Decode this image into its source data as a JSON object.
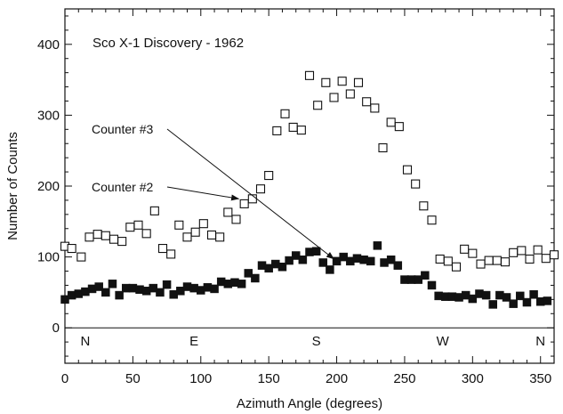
{
  "chart_data": {
    "type": "scatter",
    "title": "Sco X-1 Discovery - 1962",
    "xlabel": "Azimuth Angle (degrees)",
    "ylabel": "Number of Counts",
    "xlim": [
      0,
      360
    ],
    "ylim": [
      -50,
      450
    ],
    "xticks": [
      0,
      50,
      100,
      150,
      200,
      250,
      300,
      350
    ],
    "yticks": [
      0,
      100,
      200,
      300,
      400
    ],
    "grid": false,
    "annotations": [
      {
        "text": "Counter #3",
        "target": [
          198,
          97
        ]
      },
      {
        "text": "Counter #2",
        "target": [
          128,
          182
        ]
      }
    ],
    "direction_labels": [
      {
        "text": "N",
        "x": 15
      },
      {
        "text": "E",
        "x": 95
      },
      {
        "text": "S",
        "x": 185
      },
      {
        "text": "W",
        "x": 278
      },
      {
        "text": "N",
        "x": 350
      }
    ],
    "series": [
      {
        "marker": "open-square",
        "x": [
          0,
          5,
          12,
          18,
          24,
          30,
          36,
          42,
          48,
          54,
          60,
          66,
          72,
          78,
          84,
          90,
          96,
          102,
          108,
          114,
          120,
          126,
          132,
          138,
          144,
          150,
          156,
          162,
          168,
          174,
          180,
          186,
          192,
          198,
          204,
          210,
          216,
          222,
          228,
          234,
          240,
          246,
          252,
          258,
          264,
          270,
          276,
          282,
          288,
          294,
          300,
          306,
          312,
          318,
          324,
          330,
          336,
          342,
          348,
          354,
          360
        ],
        "y": [
          115,
          112,
          100,
          128,
          132,
          130,
          125,
          122,
          142,
          145,
          133,
          165,
          112,
          104,
          145,
          128,
          135,
          147,
          131,
          128,
          163,
          153,
          175,
          182,
          196,
          215,
          278,
          302,
          283,
          279,
          356,
          314,
          346,
          325,
          348,
          330,
          346,
          319,
          310,
          254,
          290,
          284,
          223,
          203,
          172,
          152,
          97,
          94,
          86,
          111,
          105,
          90,
          95,
          95,
          93,
          106,
          109,
          97,
          110,
          98,
          103
        ]
      },
      {
        "marker": "filled-square",
        "x": [
          0,
          5,
          10,
          15,
          20,
          25,
          30,
          35,
          40,
          45,
          50,
          55,
          60,
          65,
          70,
          75,
          80,
          85,
          90,
          95,
          100,
          105,
          110,
          115,
          120,
          125,
          130,
          135,
          140,
          145,
          150,
          155,
          160,
          165,
          170,
          175,
          180,
          185,
          190,
          195,
          200,
          205,
          210,
          215,
          220,
          225,
          230,
          235,
          240,
          245,
          250,
          255,
          260,
          265,
          270,
          275,
          280,
          285,
          290,
          295,
          300,
          305,
          310,
          315,
          320,
          325,
          330,
          335,
          340,
          345,
          350,
          355
        ],
        "y": [
          40,
          46,
          48,
          51,
          55,
          58,
          50,
          62,
          46,
          56,
          56,
          54,
          52,
          56,
          50,
          61,
          47,
          52,
          58,
          56,
          53,
          57,
          55,
          65,
          62,
          64,
          62,
          77,
          70,
          88,
          84,
          90,
          86,
          95,
          102,
          96,
          107,
          108,
          92,
          82,
          94,
          100,
          94,
          98,
          96,
          94,
          116,
          92,
          96,
          88,
          68,
          68,
          68,
          74,
          60,
          45,
          44,
          44,
          43,
          46,
          41,
          48,
          46,
          33,
          46,
          43,
          34,
          45,
          36,
          47,
          37,
          38
        ]
      }
    ]
  }
}
